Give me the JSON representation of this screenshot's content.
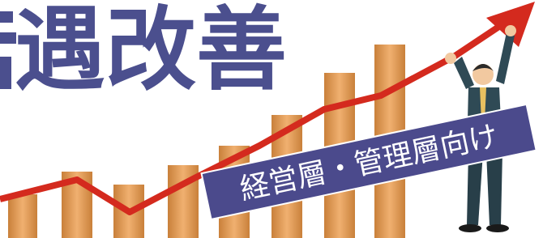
{
  "header": {
    "title": "遇改善"
  },
  "badge": {
    "label": "経営層・管理層向け"
  }
}
